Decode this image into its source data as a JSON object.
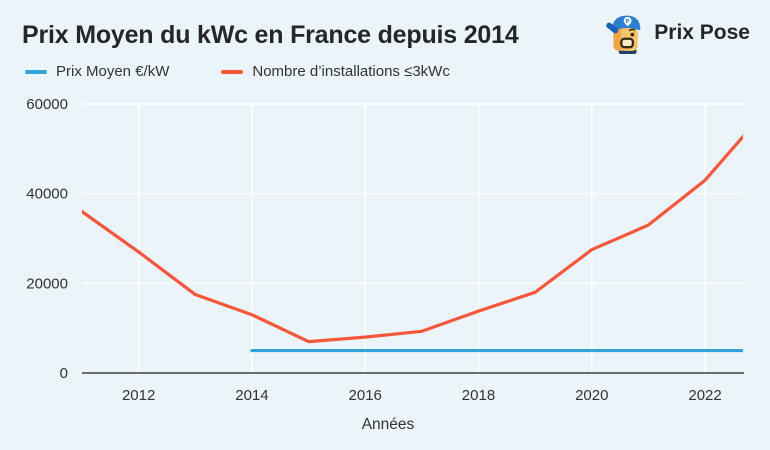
{
  "brand": {
    "name": "Prix Pose",
    "icon": "prix-pose-mascot-icon"
  },
  "colors": {
    "background": "#ebf4f8",
    "grid": "#ffffff",
    "axis": "#3f3f3f",
    "tick_text": "#333333",
    "title_text": "#262626",
    "blue_series": "#31a3d9",
    "orange_series": "#f4573c"
  },
  "chart_data": {
    "type": "line",
    "title": "Prix Moyen du kWc en France depuis 2014",
    "xlabel": "Années",
    "ylabel": "",
    "x_range": [
      2011,
      2022.67
    ],
    "y_range": [
      0,
      60000
    ],
    "x_ticks": [
      2012,
      2014,
      2016,
      2018,
      2020,
      2022
    ],
    "y_ticks": [
      0,
      20000,
      40000,
      60000
    ],
    "grid": true,
    "legend_position": "top-left",
    "series": [
      {
        "name": "Prix Moyen €/kW",
        "color": "#31a3d9",
        "x": [
          2014,
          2015,
          2016,
          2017,
          2018,
          2019,
          2020,
          2021,
          2022,
          2023
        ],
        "values": [
          5000,
          5000,
          5000,
          5000,
          5000,
          5000,
          5000,
          5000,
          5000,
          5000
        ]
      },
      {
        "name": "Nombre d’installations ≤3kWc",
        "color": "#f4573c",
        "x": [
          2011,
          2012,
          2013,
          2014,
          2015,
          2016,
          2017,
          2018,
          2019,
          2020,
          2021,
          2022,
          2023
        ],
        "values": [
          36000,
          27000,
          17500,
          13000,
          7000,
          8000,
          9300,
          13800,
          18000,
          27500,
          33000,
          43000,
          57500
        ]
      }
    ]
  }
}
